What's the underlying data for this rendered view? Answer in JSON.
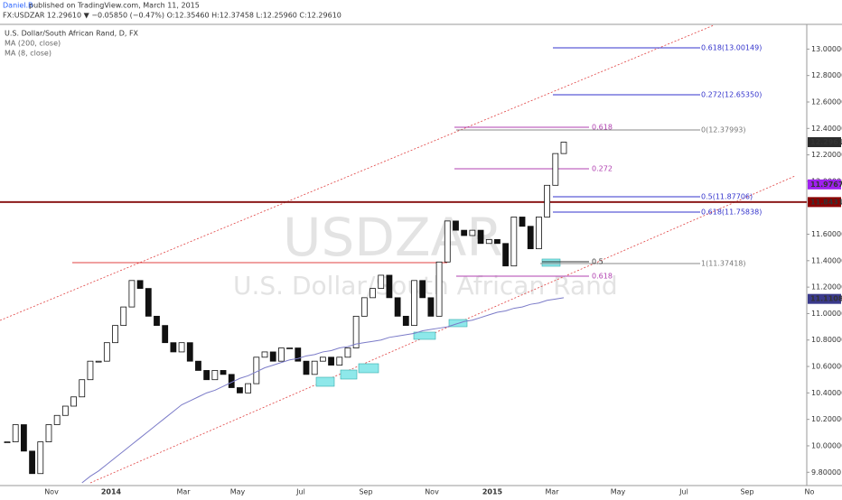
{
  "header": {
    "author": "Daniel.B",
    "published": "published on TradingView.com, March 11, 2015",
    "quote": "FX:USDZAR 12.29610 ▼ −0.05850 (−0.47%) O:12.35460 H:12.37458 L:12.25960 C:12.29610",
    "symbol_info": "U.S. Dollar/South African Rand, D, FX",
    "indicator_2": "MA (8, close)",
    "watermark_symbol": "USDZAR",
    "watermark_name": "U.S. Dollar/South African Rand"
  },
  "chart_data": {
    "type": "candlestick",
    "close": [
      10.03,
      10.16,
      9.96,
      9.79,
      10.03,
      10.16,
      10.23,
      10.3,
      10.37,
      10.5,
      10.64,
      10.64,
      10.78,
      10.91,
      11.05,
      11.25,
      11.19,
      10.98,
      10.91,
      10.78,
      10.71,
      10.78,
      10.64,
      10.57,
      10.5,
      10.57,
      10.54,
      10.44,
      10.4,
      10.47,
      10.67,
      10.71,
      10.64,
      10.74,
      10.74,
      10.64,
      10.54,
      10.64,
      10.67,
      10.61,
      10.67,
      10.74,
      10.98,
      11.12,
      11.19,
      11.29,
      11.12,
      10.98,
      10.91,
      11.25,
      11.12,
      10.98,
      11.39,
      11.7,
      11.63,
      11.59,
      11.63,
      11.53,
      11.56,
      11.53,
      11.36,
      11.73,
      11.66,
      11.49,
      11.73,
      11.97,
      12.21,
      12.2961
    ],
    "series": [
      {
        "name": "MA (200, close)",
        "color": "#7b7bc8",
        "values": [
          null,
          null,
          null,
          null,
          null,
          null,
          null,
          null,
          null,
          9.72,
          9.77,
          9.81,
          9.86,
          9.91,
          9.96,
          10.01,
          10.06,
          10.11,
          10.16,
          10.21,
          10.26,
          10.31,
          10.34,
          10.37,
          10.4,
          10.42,
          10.45,
          10.48,
          10.51,
          10.53,
          10.56,
          10.59,
          10.61,
          10.63,
          10.65,
          10.66,
          10.68,
          10.69,
          10.71,
          10.72,
          10.74,
          10.75,
          10.77,
          10.78,
          10.79,
          10.8,
          10.82,
          10.83,
          10.84,
          10.85,
          10.87,
          10.88,
          10.89,
          10.9,
          10.92,
          10.94,
          10.95,
          10.97,
          10.99,
          11.01,
          11.02,
          11.04,
          11.05,
          11.07,
          11.08,
          11.1,
          11.11,
          11.12
        ]
      }
    ],
    "x_labels": [
      "Nov",
      "2014",
      "Mar",
      "May",
      "Jul",
      "Sep",
      "Nov",
      "2015",
      "Mar",
      "May",
      "Jul",
      "Sep",
      "No"
    ],
    "ylim": [
      9.72,
      13.18
    ],
    "yticks": [
      {
        "value": 9.8,
        "label": "9.80000"
      },
      {
        "value": 10,
        "label": "10.00000"
      },
      {
        "value": 10.2,
        "label": "10.20000"
      },
      {
        "value": 10.4,
        "label": "10.40000"
      },
      {
        "value": 10.6,
        "label": "10.60000"
      },
      {
        "value": 10.8,
        "label": "10.80000"
      },
      {
        "value": 11,
        "label": "11.00000"
      },
      {
        "value": 11.2,
        "label": "11.20000"
      },
      {
        "value": 11.4,
        "label": "11.40000"
      },
      {
        "value": 11.6,
        "label": "11.60000"
      },
      {
        "value": 12,
        "label": "12.00000"
      },
      {
        "value": 12.2,
        "label": "12.20000"
      },
      {
        "value": 12.4,
        "label": "12.40000"
      },
      {
        "value": 12.6,
        "label": "12.60000"
      },
      {
        "value": 12.8,
        "label": "12.80000"
      },
      {
        "value": 13,
        "label": "13.00000"
      }
    ],
    "price_labels": [
      {
        "value": 12.2961,
        "label": "12.29610",
        "color": "#2b2b2b"
      },
      {
        "value": 11.97673,
        "label": "11.97673",
        "color": "#a020f0"
      },
      {
        "value": 11.84313,
        "label": "11.84313",
        "color": "#8b0000"
      },
      {
        "value": 11.11089,
        "label": "11.11089",
        "color": "#3a3a8c"
      }
    ],
    "hline": {
      "value": 11.84313,
      "color": "#8b1a1a"
    },
    "fib_labels": [
      "0.618(13.00149)",
      "0.272(12.65350)",
      "0(12.37993)",
      "0.618",
      "0.272",
      "0.5(11.87706)",
      "0.618(11.75838)",
      "1(11.37418)",
      "0.5",
      "0.618"
    ]
  }
}
